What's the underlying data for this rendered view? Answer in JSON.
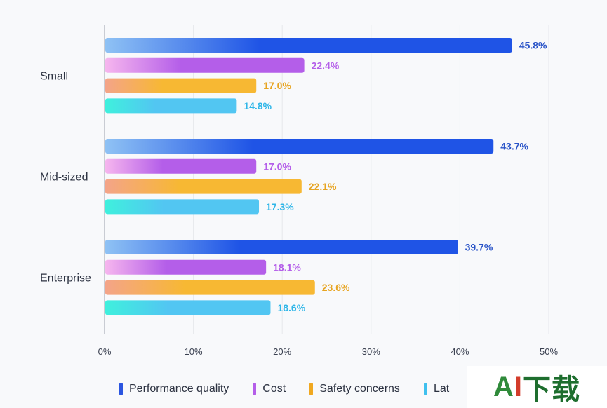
{
  "chart_data": {
    "type": "bar",
    "orientation": "horizontal",
    "categories": [
      "Small",
      "Mid-sized",
      "Enterprise"
    ],
    "series": [
      {
        "name": "Performance quality",
        "values": [
          45.8,
          43.7,
          39.7
        ],
        "color": "#1f54e6",
        "gradient_from": "#8fc2f4"
      },
      {
        "name": "Cost",
        "values": [
          22.4,
          17.0,
          18.1
        ],
        "color": "#b45ee9",
        "gradient_from": "#f6b6ee"
      },
      {
        "name": "Safety concerns",
        "values": [
          17.0,
          22.1,
          23.6
        ],
        "color": "#f7b833",
        "gradient_from": "#f4a489"
      },
      {
        "name": "Latency",
        "values": [
          14.8,
          17.3,
          18.6
        ],
        "color": "#52c6f2",
        "gradient_from": "#3ff0dd"
      }
    ],
    "value_labels": [
      [
        "45.8%",
        "43.7%",
        "39.7%"
      ],
      [
        "22.4%",
        "17.0%",
        "18.1%"
      ],
      [
        "17.0%",
        "22.1%",
        "23.6%"
      ],
      [
        "14.8%",
        "17.3%",
        "18.6%"
      ]
    ],
    "label_colors": [
      "#2b55c8",
      "#b45ee9",
      "#e7a420",
      "#2fb6e8"
    ],
    "xlim": [
      0,
      50
    ],
    "xticks": [
      0,
      10,
      20,
      30,
      40,
      50
    ],
    "xtick_labels": [
      "0%",
      "10%",
      "20%",
      "30%",
      "40%",
      "50%"
    ],
    "grid": true,
    "legend_position": "bottom",
    "legend_labels": [
      "Performance quality",
      "Cost",
      "Safety concerns",
      "Lat"
    ]
  },
  "watermark": {
    "a": "A",
    "i": "I",
    "rest": "下载"
  }
}
